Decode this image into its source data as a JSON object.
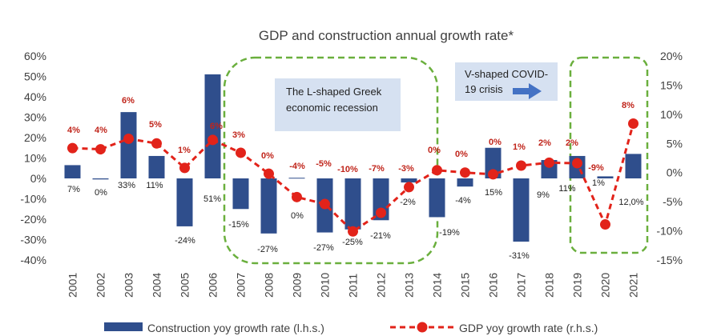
{
  "chart_data": {
    "type": "bar+line",
    "title": "GDP and construction annual growth rate*",
    "categories": [
      "2001",
      "2002",
      "2003",
      "2004",
      "2005",
      "2006",
      "2007",
      "2008",
      "2009",
      "2010",
      "2011",
      "2012",
      "2013",
      "2014",
      "2015",
      "2016",
      "2017",
      "2018",
      "2019",
      "2020",
      "2021"
    ],
    "series": [
      {
        "name": "Construction yoy growth rate (l.h.s.)",
        "type": "bar",
        "axis": "left",
        "color": "#2F4E8C",
        "values": [
          6.5,
          -0.5,
          32.5,
          11,
          -23.5,
          51,
          -15,
          -27,
          0.3,
          -26.5,
          -25,
          -20.5,
          -2,
          -19,
          -4,
          15,
          -31,
          9,
          11,
          1,
          12
        ],
        "labels": [
          "7%",
          "0%",
          "33%",
          "11%",
          "-24%",
          "51%",
          "-15%",
          "-27%",
          "0%",
          "-27%",
          "-25%",
          "-21%",
          "-2%",
          "-19%",
          "-4%",
          "15%",
          "-31%",
          "9%",
          "11%",
          "1%",
          "12,0%"
        ]
      },
      {
        "name": "GDP yoy growth rate (r.h.s.)",
        "type": "line",
        "axis": "right",
        "color": "#E2231A",
        "style": "dashed",
        "values": [
          4.2,
          4.0,
          5.8,
          5.0,
          0.8,
          5.6,
          3.4,
          -0.2,
          -4.2,
          -5.4,
          -10.1,
          -6.9,
          -2.5,
          0.4,
          0.0,
          -0.3,
          1.2,
          1.7,
          1.6,
          -8.9,
          8.4
        ],
        "labels": [
          "4%",
          "4%",
          "6%",
          "5%",
          "1%",
          "6%",
          "3%",
          "0%",
          "-4%",
          "-5%",
          "-10%",
          "-7%",
          "-3%",
          "0%",
          "0%",
          "0%",
          "1%",
          "2%",
          "2%",
          "-9%",
          "8%"
        ]
      }
    ],
    "left_axis": {
      "range": [
        -40,
        60
      ],
      "ticks": [
        "60%",
        "50%",
        "40%",
        "30%",
        "20%",
        "10%",
        "0%",
        "-10%",
        "-20%",
        "-30%",
        "-40%"
      ]
    },
    "right_axis": {
      "range": [
        -15,
        20
      ],
      "ticks": [
        "20%",
        "15%",
        "10%",
        "5%",
        "0%",
        "-5%",
        "-10%",
        "-15%"
      ]
    },
    "grid": false,
    "legend_position": "bottom",
    "annotations": [
      {
        "text_lines": [
          "The L-shaped Greek",
          "economic recession"
        ]
      },
      {
        "text_lines": [
          "V-shaped COVID-",
          "19 crisis"
        ]
      }
    ]
  }
}
